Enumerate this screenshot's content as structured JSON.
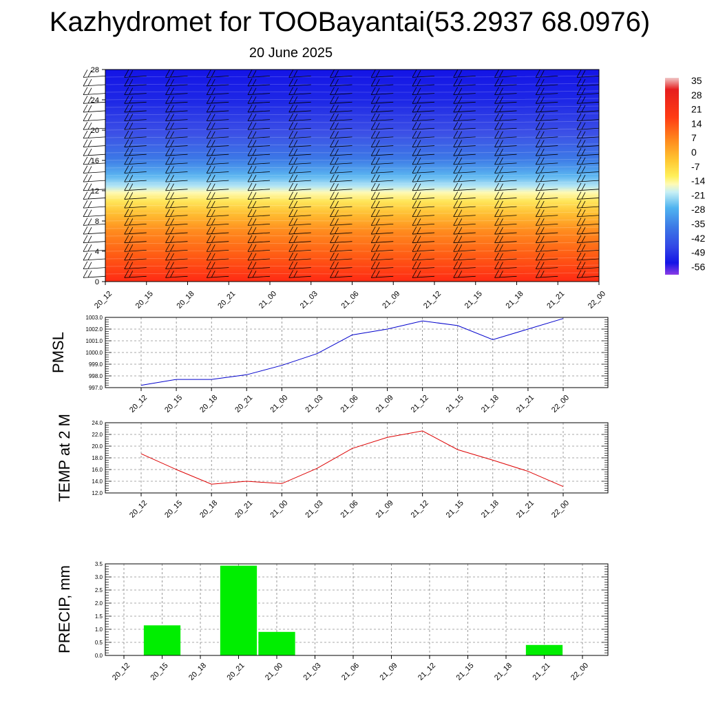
{
  "chart_data": [
    {
      "type": "heatmap",
      "title": "Kazhydromet for TOOBayantai(53.2937 68.0976)",
      "subtitle": "20 June 2025",
      "x_ticks": [
        "20_12",
        "20_15",
        "20_18",
        "20_21",
        "21_00",
        "21_03",
        "21_06",
        "21_09",
        "21_12",
        "21_15",
        "21_18",
        "21_21",
        "22_00"
      ],
      "y_ticks": [
        "0",
        "4",
        "8",
        "12",
        "16",
        "20",
        "24",
        "28"
      ],
      "ylim": [
        0,
        28
      ],
      "colorbar_labels": [
        "35",
        "28",
        "21",
        "14",
        "7",
        "0",
        "-7",
        "-14",
        "-21",
        "-28",
        "-35",
        "-42",
        "-49",
        "-56"
      ],
      "colors": [
        "#ff3c1e",
        "#ff8c1e",
        "#ffd23c",
        "#fffa8c",
        "#a0dcf0",
        "#4696f0",
        "#3c46e6",
        "#1414e6"
      ],
      "wind_barbs": true
    },
    {
      "type": "line",
      "ylabel": "PMSL",
      "x": [
        "20_12",
        "20_15",
        "20_18",
        "20_21",
        "21_00",
        "21_03",
        "21_06",
        "21_09",
        "21_12",
        "21_15",
        "21_18",
        "21_21",
        "22_00"
      ],
      "values": [
        997.2,
        997.7,
        997.7,
        998.1,
        998.9,
        999.9,
        1001.5,
        1002.0,
        1002.7,
        1002.3,
        1001.1,
        1002.0,
        1002.9
      ],
      "y_ticks": [
        "997.0",
        "998.0",
        "999.0",
        "1000.0",
        "1001.0",
        "1002.0",
        "1003.0"
      ],
      "ylim": [
        997.0,
        1003.0
      ],
      "color": "#0000cc",
      "grid": true
    },
    {
      "type": "line",
      "ylabel": "TEMP at 2 M",
      "x": [
        "20_12",
        "20_15",
        "20_18",
        "20_21",
        "21_00",
        "21_03",
        "21_06",
        "21_09",
        "21_12",
        "21_15",
        "21_18",
        "21_21",
        "22_00"
      ],
      "values": [
        18.7,
        16.0,
        13.5,
        14.0,
        13.6,
        16.2,
        19.6,
        21.5,
        22.6,
        19.4,
        17.6,
        15.7,
        13.1
      ],
      "y_ticks": [
        "12.0",
        "14.0",
        "16.0",
        "18.0",
        "20.0",
        "22.0",
        "24.0"
      ],
      "ylim": [
        12.0,
        24.0
      ],
      "color": "#dd0000",
      "grid": true
    },
    {
      "type": "bar",
      "ylabel": "PRECIP, mm",
      "x": [
        "20_12",
        "20_15",
        "20_18",
        "20_21",
        "21_00",
        "21_03",
        "21_06",
        "21_09",
        "21_12",
        "21_15",
        "21_18",
        "21_21",
        "22_00"
      ],
      "values": [
        0,
        1.15,
        0,
        3.43,
        0.9,
        0,
        0,
        0,
        0,
        0,
        0,
        0.4,
        0
      ],
      "y_ticks": [
        "0.0",
        "0.5",
        "1.0",
        "1.5",
        "2.0",
        "2.5",
        "3.0",
        "3.5"
      ],
      "ylim": [
        0,
        3.5
      ],
      "color": "#00ee00",
      "grid": true
    }
  ]
}
